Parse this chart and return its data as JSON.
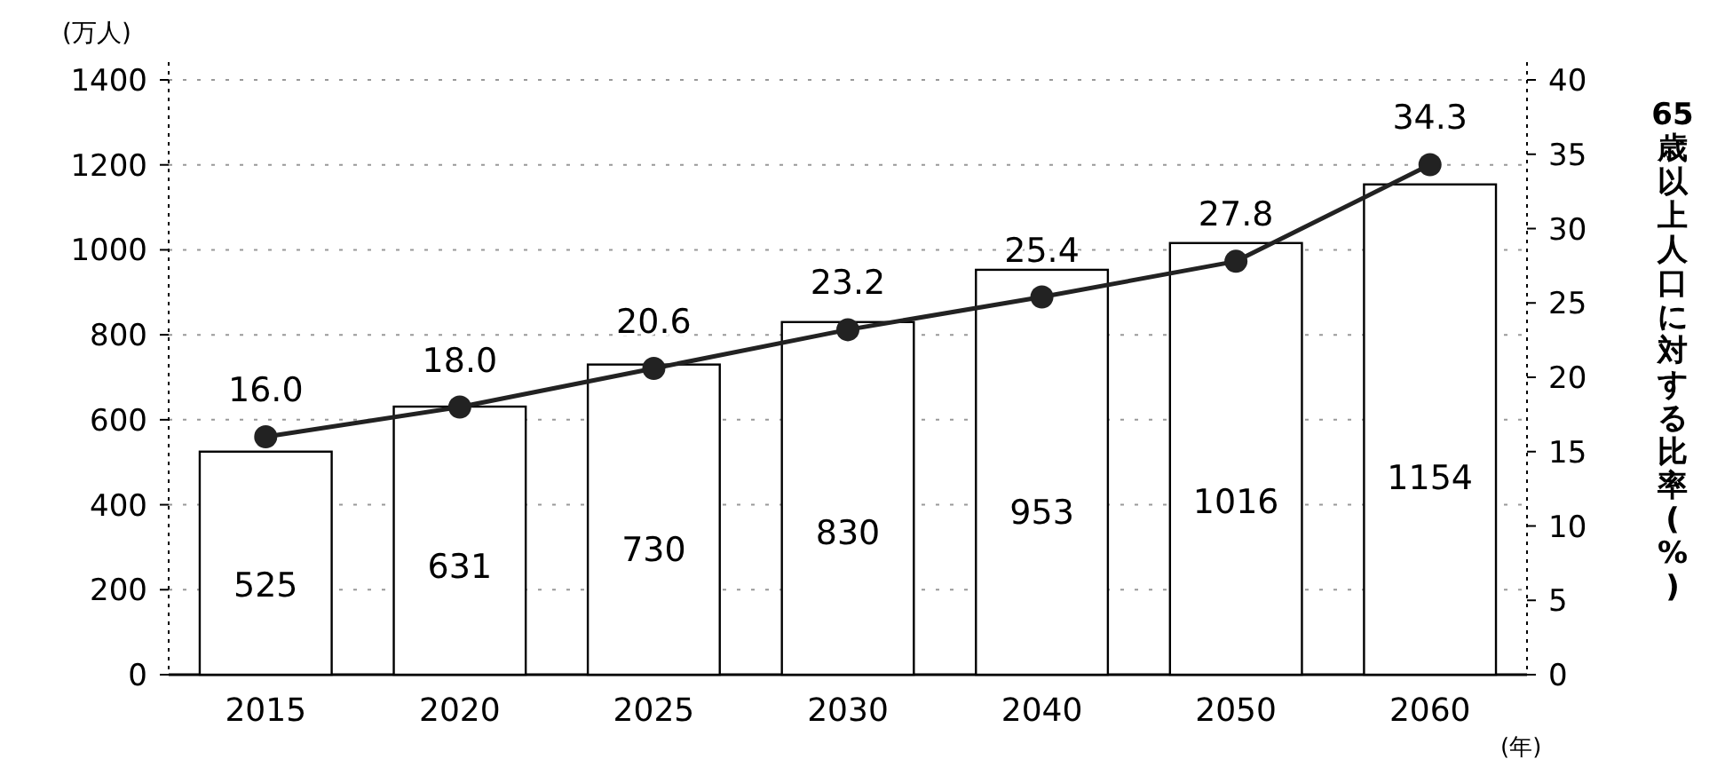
{
  "chart_data": {
    "type": "bar",
    "categories": [
      "2015",
      "2020",
      "2025",
      "2030",
      "2040",
      "2050",
      "2060"
    ],
    "ylabel": "(万人)",
    "y2label": "65歳以上人口に対する比率(%)",
    "annotations": [
      "(年)"
    ],
    "ylim": [
      0,
      1400
    ],
    "yticks": [
      0,
      200,
      400,
      600,
      800,
      1000,
      1200,
      1400
    ],
    "y2lim": [
      0,
      40
    ],
    "y2ticks": [
      0,
      5,
      10,
      15,
      20,
      25,
      30,
      35,
      40
    ],
    "grid": "y",
    "marker": "circle",
    "series": [
      {
        "color": "#ffffff",
        "values": [
          525,
          631,
          730,
          830,
          953,
          1016,
          1154
        ],
        "value_labels": [
          "525",
          "631",
          "730",
          "830",
          "953",
          "1016",
          "1154"
        ]
      },
      {
        "type": "line",
        "axis": "y2",
        "color": "#222222",
        "values": [
          16.0,
          18.0,
          20.6,
          23.2,
          25.4,
          27.8,
          34.3
        ],
        "value_labels": [
          "16.0",
          "18.0",
          "20.6",
          "23.2",
          "25.4",
          "27.8",
          "34.3"
        ]
      }
    ]
  }
}
